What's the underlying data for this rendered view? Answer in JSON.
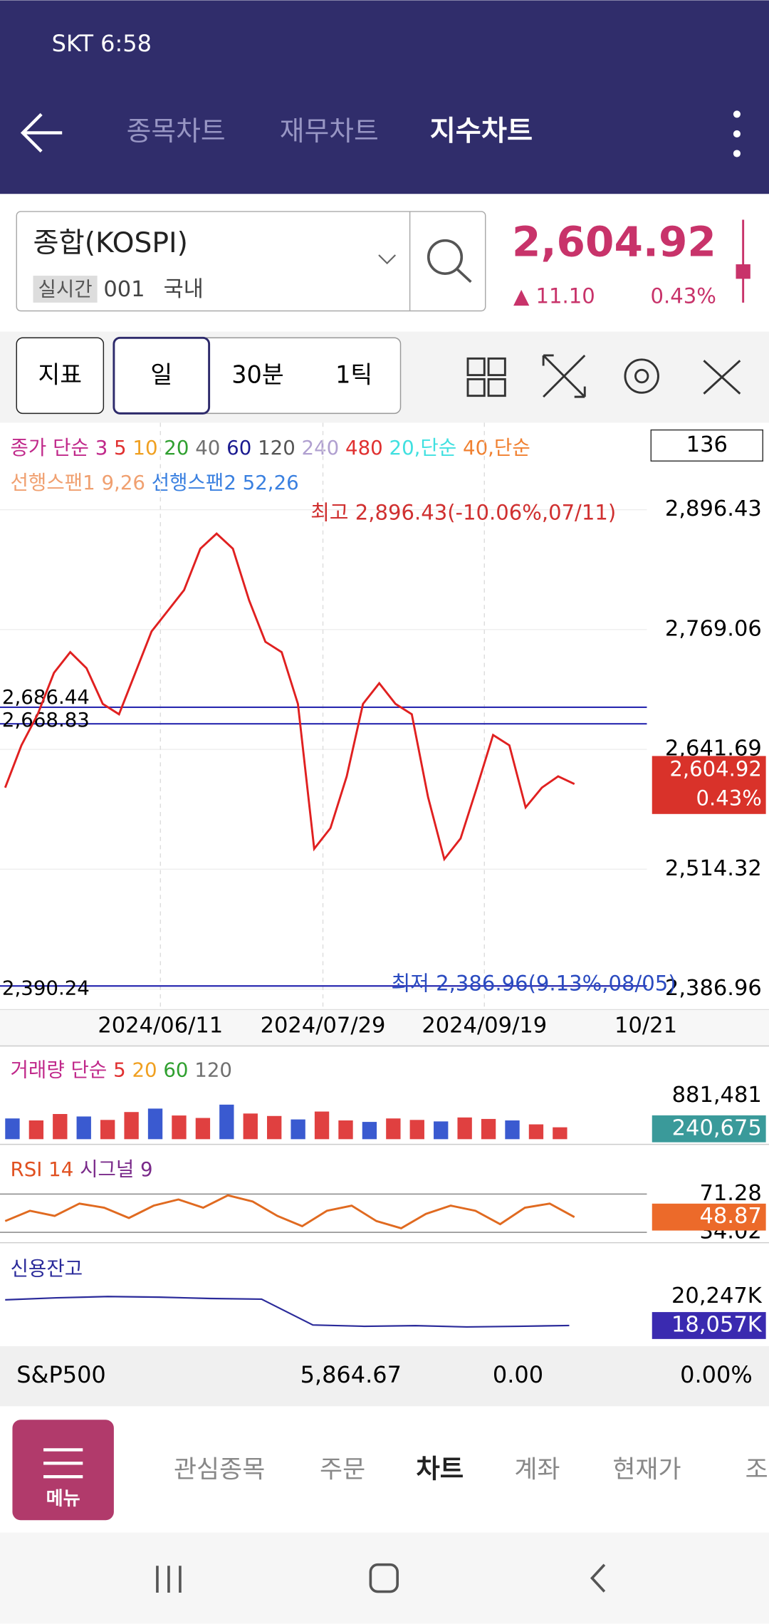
{
  "status": {
    "carrier_time": "SKT 6:58"
  },
  "header": {
    "tabs": [
      "종목차트",
      "재무차트",
      "지수차트"
    ]
  },
  "symbol": {
    "name": "종합(KOSPI)",
    "badge": "실시간",
    "code": "001",
    "market": "국내",
    "price": "2,604.92",
    "change": "▲ 11.10",
    "pct": "0.43%"
  },
  "toolbar": {
    "buttons": [
      "지표",
      "일",
      "30분",
      "1틱"
    ]
  },
  "price_chart": {
    "legend": [
      {
        "text": "종가 단순 ",
        "color": "#c0288a"
      },
      {
        "text": "3 ",
        "color": "#c0288a"
      },
      {
        "text": "5 ",
        "color": "#e03030"
      },
      {
        "text": "10 ",
        "color": "#f0a020"
      },
      {
        "text": "20 ",
        "color": "#30a030"
      },
      {
        "text": "40 ",
        "color": "#707070"
      },
      {
        "text": "60 ",
        "color": "#1a1a90"
      },
      {
        "text": "120 ",
        "color": "#555"
      },
      {
        "text": "240 ",
        "color": "#b0a0d0"
      },
      {
        "text": "480 ",
        "color": "#e03030"
      },
      {
        "text": "20,단순 ",
        "color": "#40e0e0"
      },
      {
        "text": "40,단순",
        "color": "#f08030"
      }
    ],
    "legend2": [
      {
        "text": "선행스팬1 9,26 ",
        "color": "#f0a070"
      },
      {
        "text": "선행스팬2 52,26",
        "color": "#3a80e0"
      }
    ],
    "count_box": "136",
    "ylim": [
      2386.96,
      2896.43
    ],
    "yticks": [
      {
        "value": 2896.43,
        "label": "2,896.43"
      },
      {
        "value": 2769.06,
        "label": "2,769.06"
      },
      {
        "value": 2641.69,
        "label": "2,641.69"
      },
      {
        "value": 2514.32,
        "label": "2,514.32"
      },
      {
        "value": 2386.96,
        "label": "2,386.96"
      }
    ],
    "ref_lines": [
      {
        "value": 2686.44,
        "label": "2,686.44"
      },
      {
        "value": 2668.83,
        "label": "2,668.83"
      },
      {
        "value": 2390.24,
        "label": "2,390.24"
      }
    ],
    "high_note": "최고 2,896.43(-10.06%,07/11)",
    "low_note": "최저 2,386.96(9.13%,08/05)",
    "x_labels": [
      "2024/06/11",
      "2024/07/29",
      "2024/09/19",
      "10/21"
    ],
    "series": [
      {
        "color": "#e02020",
        "values": [
          2601,
          2646,
          2679,
          2723,
          2745,
          2728,
          2690,
          2679,
          2723,
          2767,
          2789,
          2811,
          2855,
          2871,
          2855,
          2800,
          2756,
          2745,
          2690,
          2536,
          2558,
          2613,
          2690,
          2712,
          2690,
          2679,
          2591,
          2525,
          2547,
          2601,
          2657,
          2646,
          2580,
          2601,
          2613,
          2604.92
        ]
      }
    ],
    "last": {
      "value": 2604.92,
      "label": "2,604.92"
    },
    "last_pct": "0.43%"
  },
  "volume_panel": {
    "legend": [
      {
        "text": "거래량 단순 ",
        "color": "#c0288a"
      },
      {
        "text": "5 ",
        "color": "#e03030"
      },
      {
        "text": "20 ",
        "color": "#f0a020"
      },
      {
        "text": "60 ",
        "color": "#30a030"
      },
      {
        "text": "120",
        "color": "#707070"
      }
    ],
    "top": {
      "value": 881481,
      "label": "881,481"
    },
    "last": {
      "value": 240675,
      "label": "240,675"
    },
    "values": [
      420000,
      380000,
      510000,
      460000,
      390000,
      550000,
      620000,
      480000,
      430000,
      700000,
      520000,
      470000,
      400000,
      560000,
      380000,
      350000,
      420000,
      390000,
      360000,
      440000,
      410000,
      380000,
      300000,
      240675
    ]
  },
  "rsi_panel": {
    "legend": [
      {
        "text": "RSI 14 ",
        "color": "#e05020"
      },
      {
        "text": "시그널 9",
        "color": "#7a2a8a"
      }
    ],
    "top": {
      "value": 71.28,
      "label": "71.28"
    },
    "bottom": {
      "value": 34.02,
      "label": "34.02"
    },
    "last": {
      "value": 48.87,
      "label": "48.87"
    },
    "values": [
      45,
      55,
      50,
      62,
      58,
      48,
      60,
      66,
      58,
      70,
      64,
      50,
      40,
      55,
      60,
      45,
      38,
      52,
      60,
      55,
      42,
      58,
      62,
      48.87
    ]
  },
  "credit_panel": {
    "title": "신용잔고",
    "top": {
      "value": 20247,
      "label": "20,247K"
    },
    "last": {
      "value": 18057,
      "label": "18,057K"
    },
    "values": [
      20000,
      20150,
      20247,
      20200,
      20100,
      20050,
      18100,
      18000,
      18050,
      17950,
      18000,
      18057
    ]
  },
  "ticker": {
    "name": "S&P500",
    "price": "5,864.67",
    "change": "0.00",
    "pct": "0.00%"
  },
  "nav": {
    "menu": "메뉴",
    "items": [
      "관심종목",
      "주문",
      "차트",
      "계좌",
      "현재가",
      "조"
    ]
  }
}
